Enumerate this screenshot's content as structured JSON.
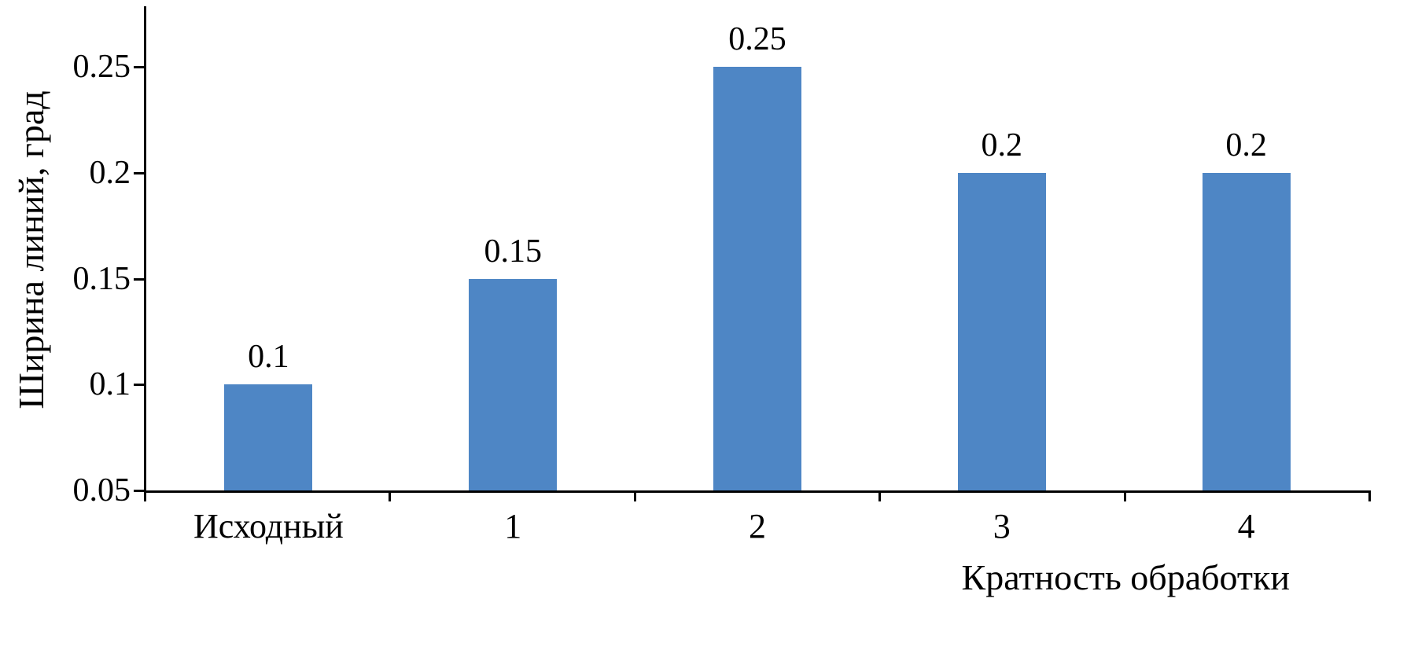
{
  "chart_data": {
    "type": "bar",
    "title": "",
    "xlabel": "Кратность обработки",
    "ylabel": "Ширина линий, град",
    "categories": [
      "Исходный",
      "1",
      "2",
      "3",
      "4"
    ],
    "values": [
      0.1,
      0.15,
      0.25,
      0.2,
      0.2
    ],
    "data_labels": [
      "0.1",
      "0.15",
      "0.25",
      "0.2",
      "0.2"
    ],
    "yticks": [
      0.05,
      0.1,
      0.15,
      0.2,
      0.25
    ],
    "ytick_labels": [
      "0.05",
      "0.1",
      "0.15",
      "0.2",
      "0.25"
    ],
    "ylim": [
      0.05,
      0.278
    ],
    "grid": false,
    "legend": false,
    "bar_color": "#4e86c5",
    "axis_color": "#000000",
    "text_color": "#000000",
    "background_color": "#ffffff"
  }
}
